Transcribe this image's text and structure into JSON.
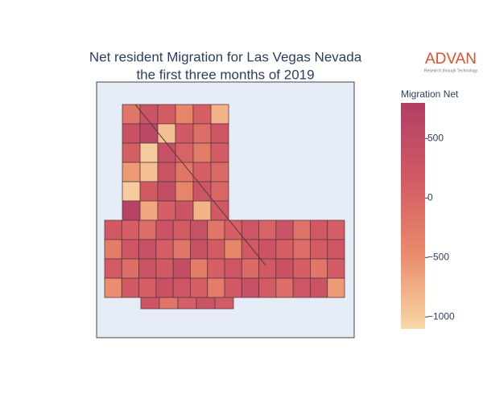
{
  "header": {
    "brand": "ADVAN",
    "tagline": "Research through Technology"
  },
  "chart_data": {
    "type": "choropleth",
    "title": "Net resident Migration for Las Vegas Nevada",
    "subtitle": "the first three months of 2019",
    "colorbar_title": "Migration Net",
    "colorscale": [
      "#f9d8a5",
      "#ea8a6a",
      "#d25a64",
      "#b13f64"
    ],
    "zlim": [
      -1100,
      800
    ],
    "zticks": [
      500,
      0,
      {
        "value": -500,
        "label": "−500"
      },
      {
        "value": -1000,
        "label": "−1000"
      }
    ],
    "values": [
      -200,
      300,
      150,
      -400,
      100,
      -800,
      350,
      600,
      -900,
      200,
      -100,
      250,
      100,
      -1000,
      400,
      50,
      -300,
      150,
      -600,
      -900,
      300,
      -200,
      100,
      -50,
      -1000,
      200,
      450,
      -400,
      250,
      0,
      700,
      -700,
      100,
      300,
      -800,
      200,
      200,
      100,
      -100,
      300,
      150,
      400,
      -200,
      100,
      250,
      50,
      300,
      -150,
      200,
      100,
      -300,
      250,
      400,
      100,
      -200,
      350,
      150,
      -400,
      200,
      300,
      100,
      -100,
      150,
      250,
      150,
      -100,
      300,
      200,
      450,
      -300,
      100,
      250,
      -50,
      200,
      350,
      100,
      -200,
      150,
      -500,
      200,
      100,
      350,
      250,
      100,
      -300,
      200,
      400,
      150,
      -100,
      250,
      300,
      -600,
      250,
      -200,
      100,
      300,
      150
    ]
  }
}
